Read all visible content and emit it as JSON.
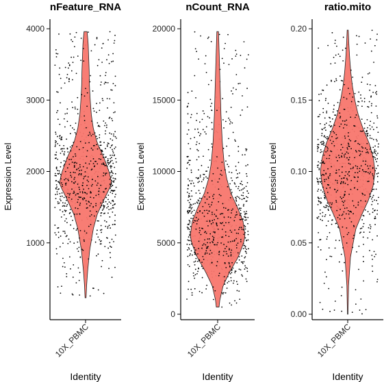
{
  "chart_data": [
    {
      "type": "violin",
      "title": "nFeature_RNA",
      "xlabel": "Identity",
      "ylabel": "Expression Level",
      "categories": [
        "10X_PBMC"
      ],
      "ylim": [
        0,
        4000
      ],
      "yticks": [
        1000,
        2000,
        3000,
        4000
      ],
      "yticklabels": [
        "1000",
        "2000",
        "3000",
        "4000"
      ],
      "range": [
        230,
        3960
      ],
      "fill_color": "#F8766D",
      "density": [
        [
          230,
          0.02
        ],
        [
          400,
          0.04
        ],
        [
          600,
          0.08
        ],
        [
          900,
          0.16
        ],
        [
          1200,
          0.3
        ],
        [
          1400,
          0.45
        ],
        [
          1600,
          0.7
        ],
        [
          1800,
          0.97
        ],
        [
          1850,
          1.0
        ],
        [
          2000,
          0.9
        ],
        [
          2200,
          0.7
        ],
        [
          2400,
          0.45
        ],
        [
          2600,
          0.3
        ],
        [
          2800,
          0.22
        ],
        [
          3000,
          0.18
        ],
        [
          3200,
          0.15
        ],
        [
          3400,
          0.14
        ],
        [
          3600,
          0.12
        ],
        [
          3800,
          0.1
        ],
        [
          3960,
          0.06
        ]
      ]
    },
    {
      "type": "violin",
      "title": "nCount_RNA",
      "xlabel": "Identity",
      "ylabel": "Expression Level",
      "categories": [
        "10X_PBMC"
      ],
      "ylim": [
        0,
        20000
      ],
      "yticks": [
        0,
        5000,
        10000,
        15000,
        20000
      ],
      "yticklabels": [
        "0",
        "5000",
        "10000",
        "15000",
        "20000"
      ],
      "range": [
        500,
        19800
      ],
      "fill_color": "#F8766D",
      "density": [
        [
          500,
          0.05
        ],
        [
          1000,
          0.08
        ],
        [
          2000,
          0.2
        ],
        [
          3000,
          0.45
        ],
        [
          4000,
          0.75
        ],
        [
          5000,
          0.95
        ],
        [
          5500,
          1.0
        ],
        [
          6500,
          0.93
        ],
        [
          7500,
          0.72
        ],
        [
          8500,
          0.48
        ],
        [
          9500,
          0.33
        ],
        [
          10500,
          0.24
        ],
        [
          12000,
          0.17
        ],
        [
          14000,
          0.12
        ],
        [
          16000,
          0.09
        ],
        [
          18000,
          0.06
        ],
        [
          19800,
          0.03
        ]
      ]
    },
    {
      "type": "violin",
      "title": "ratio.mito",
      "xlabel": "Identity",
      "ylabel": "Expression Level",
      "categories": [
        "10X_PBMC"
      ],
      "ylim": [
        0,
        0.2
      ],
      "yticks": [
        0,
        0.05,
        0.1,
        0.15,
        0.2
      ],
      "yticklabels": [
        "0.00",
        "0.05",
        "0.10",
        "0.15",
        "0.20"
      ],
      "range": [
        0.0,
        0.199
      ],
      "fill_color": "#F8766D",
      "density": [
        [
          0.0,
          0.01
        ],
        [
          0.02,
          0.03
        ],
        [
          0.04,
          0.1
        ],
        [
          0.06,
          0.3
        ],
        [
          0.07,
          0.52
        ],
        [
          0.08,
          0.76
        ],
        [
          0.09,
          0.93
        ],
        [
          0.1,
          1.0
        ],
        [
          0.11,
          0.93
        ],
        [
          0.12,
          0.78
        ],
        [
          0.13,
          0.56
        ],
        [
          0.14,
          0.38
        ],
        [
          0.15,
          0.26
        ],
        [
          0.16,
          0.17
        ],
        [
          0.17,
          0.11
        ],
        [
          0.18,
          0.07
        ],
        [
          0.19,
          0.04
        ],
        [
          0.199,
          0.02
        ]
      ]
    }
  ]
}
